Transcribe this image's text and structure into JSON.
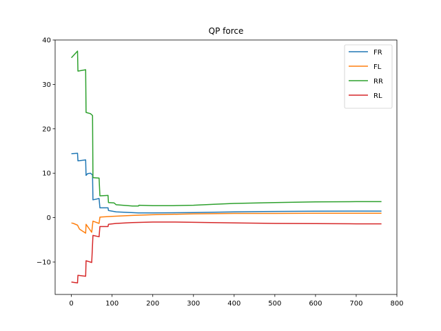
{
  "chart_data": {
    "type": "line",
    "title": "QP force",
    "xlabel": "",
    "ylabel": "",
    "xlim": [
      -40,
      800
    ],
    "ylim": [
      -17.3,
      40
    ],
    "xticks": [
      0,
      100,
      200,
      300,
      400,
      500,
      600,
      700,
      800
    ],
    "yticks": [
      -10,
      0,
      10,
      20,
      30,
      40
    ],
    "xtick_labels": [
      "0",
      "100",
      "200",
      "300",
      "400",
      "500",
      "600",
      "700",
      "800"
    ],
    "ytick_labels": [
      "−10",
      "0",
      "10",
      "20",
      "30",
      "40"
    ],
    "grid": false,
    "legend": "top-right",
    "series": [
      {
        "name": "FR",
        "color": "#1f77b4",
        "x": [
          0,
          15,
          16,
          35,
          36,
          40,
          47,
          52,
          53,
          68,
          70,
          90,
          91,
          110,
          165,
          200,
          300,
          400,
          500,
          600,
          700,
          762
        ],
        "y": [
          14.4,
          14.5,
          12.8,
          13.0,
          9.5,
          9.9,
          10.0,
          9.6,
          4.0,
          4.3,
          2.2,
          2.2,
          1.6,
          1.3,
          1.05,
          1.05,
          1.15,
          1.3,
          1.4,
          1.45,
          1.48,
          1.48
        ]
      },
      {
        "name": "FL",
        "color": "#ff7f0e",
        "x": [
          0,
          5,
          15,
          20,
          35,
          36,
          50,
          53,
          68,
          70,
          75,
          100,
          150,
          200,
          300,
          400,
          500,
          600,
          700,
          762
        ],
        "y": [
          -1.2,
          -1.3,
          -1.7,
          -2.6,
          -3.5,
          -1.5,
          -3.3,
          -0.8,
          -1.3,
          0.1,
          0.15,
          0.3,
          0.5,
          0.65,
          0.85,
          0.95,
          0.95,
          0.97,
          0.98,
          0.98
        ]
      },
      {
        "name": "RR",
        "color": "#2ca02c",
        "x": [
          0,
          5,
          15,
          16,
          35,
          36,
          47,
          52,
          53,
          68,
          70,
          90,
          91,
          105,
          110,
          150,
          165,
          166,
          200,
          250,
          300,
          350,
          400,
          500,
          600,
          700,
          762
        ],
        "y": [
          36.0,
          36.5,
          37.5,
          33.0,
          33.3,
          23.7,
          23.4,
          23.0,
          9.0,
          8.9,
          4.9,
          5.0,
          3.4,
          3.3,
          2.9,
          2.6,
          2.6,
          2.8,
          2.7,
          2.7,
          2.8,
          3.0,
          3.2,
          3.4,
          3.55,
          3.6,
          3.6
        ]
      },
      {
        "name": "RL",
        "color": "#d62728",
        "x": [
          0,
          15,
          16,
          35,
          36,
          50,
          53,
          68,
          70,
          90,
          91,
          110,
          150,
          200,
          250,
          300,
          400,
          500,
          600,
          700,
          762
        ],
        "y": [
          -14.5,
          -14.7,
          -13.0,
          -13.2,
          -9.7,
          -10.1,
          -4.0,
          -4.3,
          -2.0,
          -2.0,
          -1.5,
          -1.3,
          -1.1,
          -1.0,
          -1.0,
          -1.05,
          -1.2,
          -1.3,
          -1.35,
          -1.4,
          -1.4
        ]
      }
    ]
  }
}
